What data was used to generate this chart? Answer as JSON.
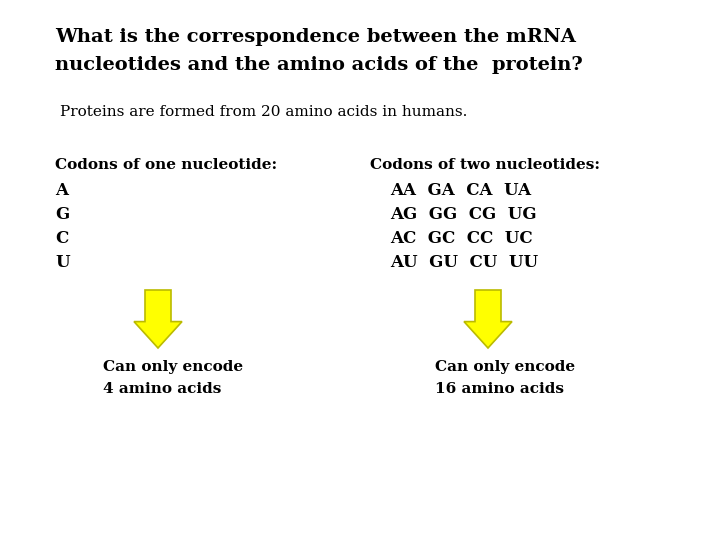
{
  "title_line1": "What is the correspondence between the mRNA",
  "title_line2": "nucleotides and the amino acids of the  protein?",
  "subtitle": "Proteins are formed from 20 amino acids in humans.",
  "left_header": "Codons of one nucleotide:",
  "left_nucleotides": [
    "A",
    "G",
    "C",
    "U"
  ],
  "left_caption_line1": "Can only encode",
  "left_caption_line2": "4 amino acids",
  "right_header": "Codons of two nucleotides:",
  "right_rows": [
    "AA  GA  CA  UA",
    "AG  GG  CG  UG",
    "AC  GC  CC  UC",
    "AU  GU  CU  UU"
  ],
  "right_caption_line1": "Can only encode",
  "right_caption_line2": "16 amino acids",
  "bg_color": "#ffffff",
  "text_color": "#000000",
  "arrow_color": "#ffff00",
  "arrow_edge_color": "#bbbb00",
  "title_fontsize": 14,
  "subtitle_fontsize": 11,
  "header_fontsize": 11,
  "body_fontsize": 12,
  "caption_fontsize": 11
}
